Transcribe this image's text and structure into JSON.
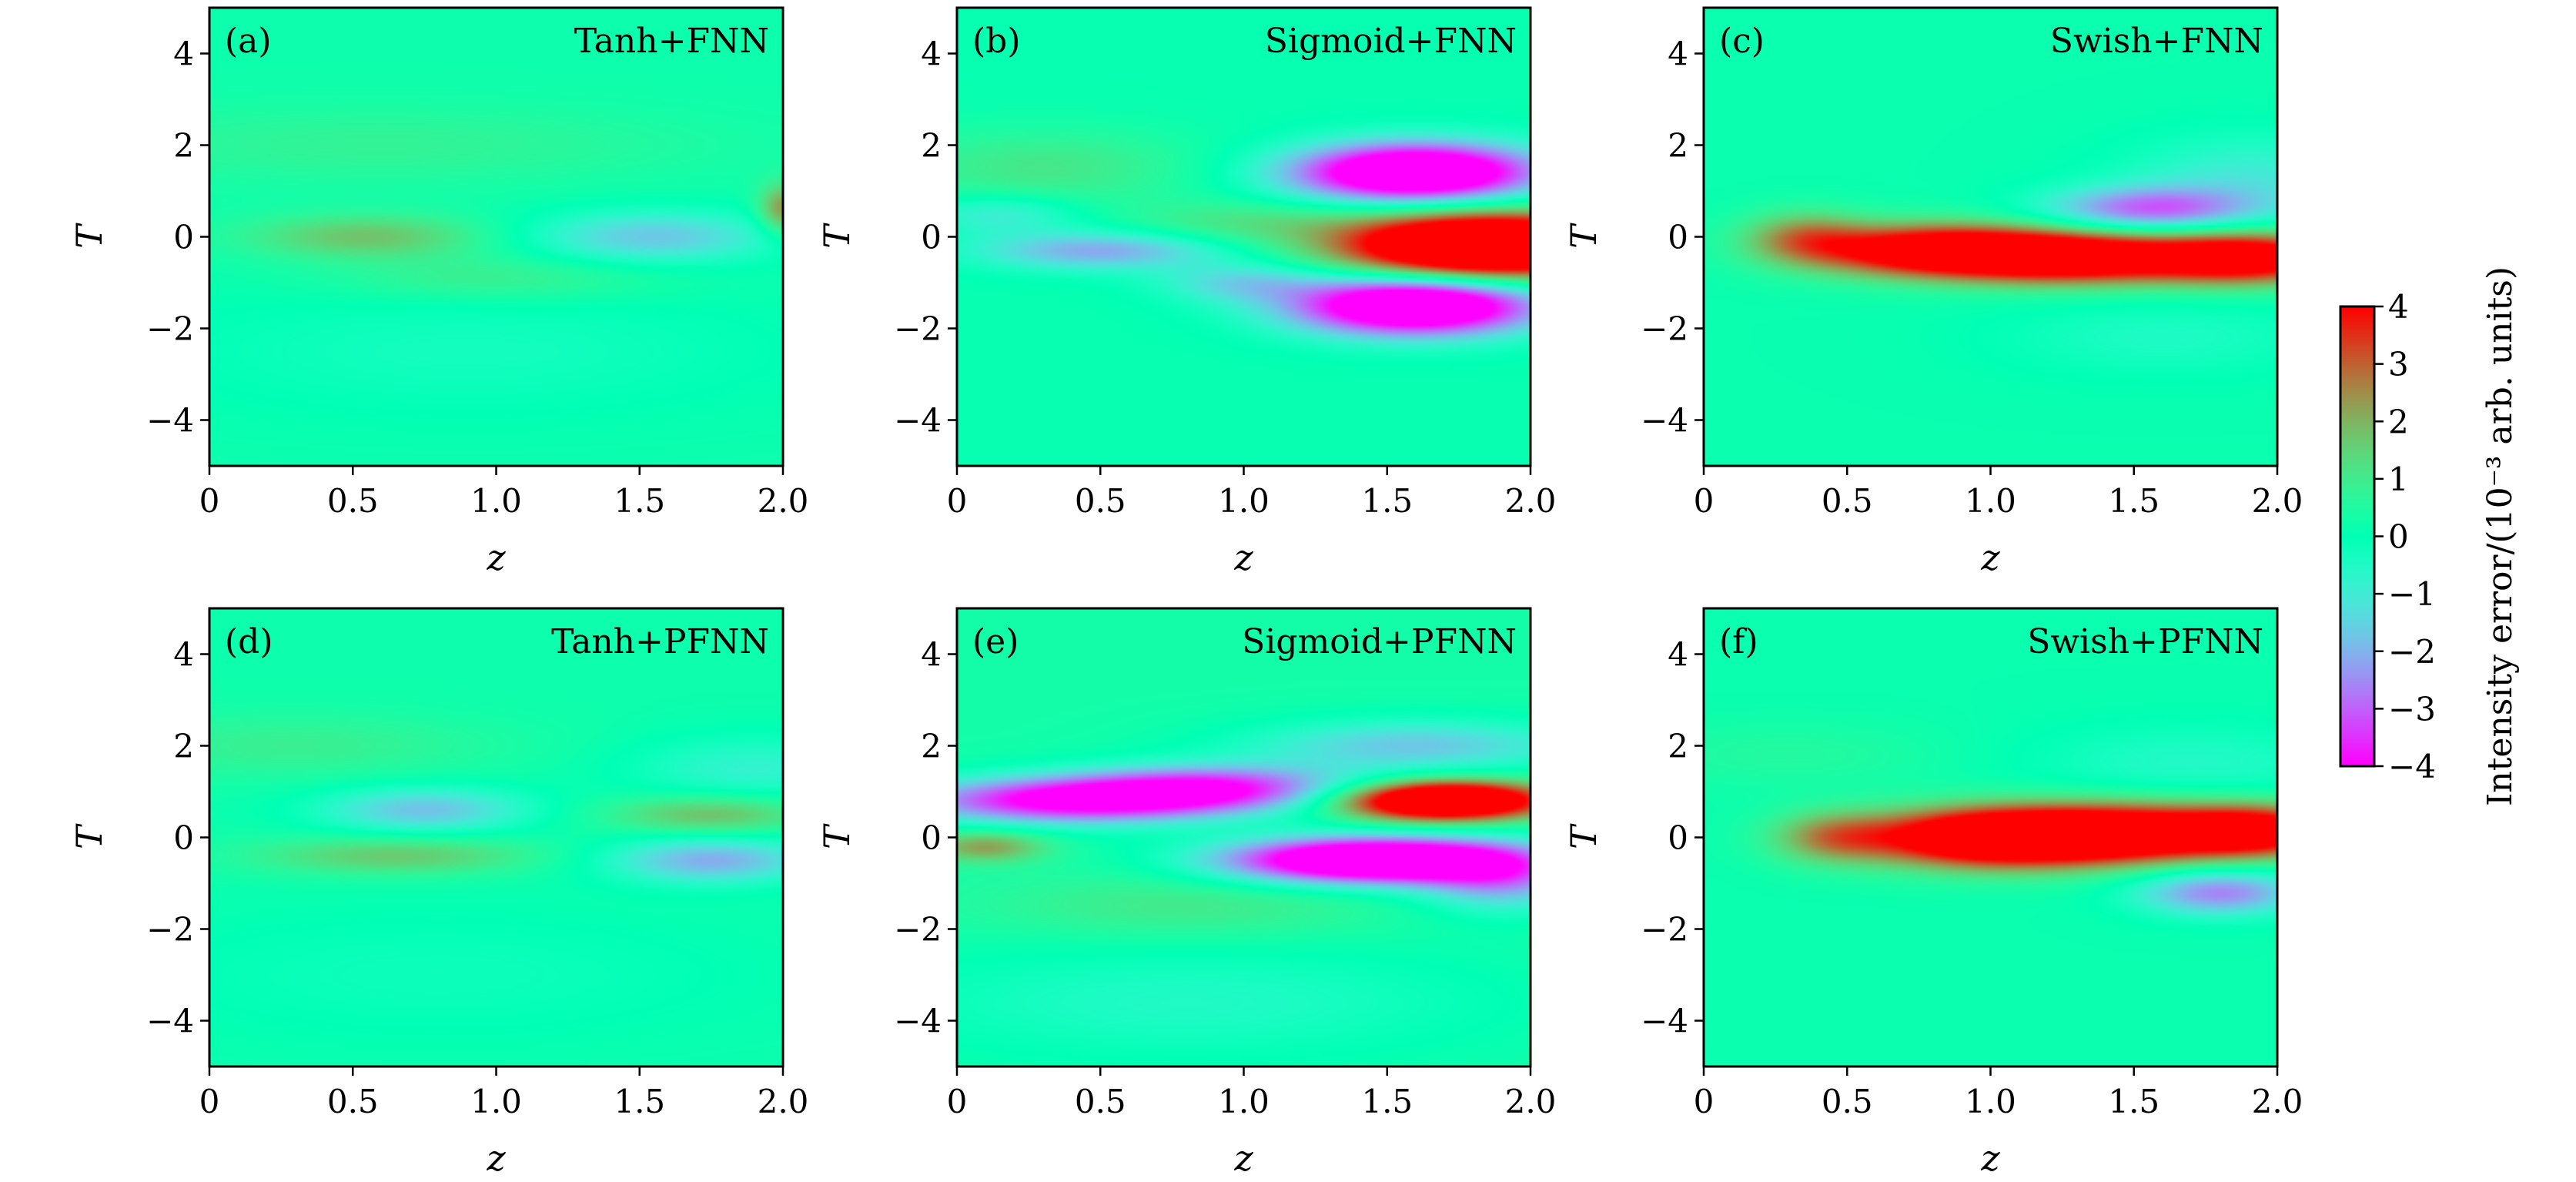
{
  "chart_data": {
    "type": "heatmap",
    "colormap": "rainbow",
    "colorbar": {
      "label": "Intensity error/(10⁻³ arb. units)",
      "vmin": -4,
      "vmax": 4,
      "ticks": [
        "4",
        "3",
        "2",
        "1",
        "0",
        "−1",
        "−2",
        "−3",
        "−4"
      ],
      "tick_values": [
        4,
        3,
        2,
        1,
        0,
        -1,
        -2,
        -3,
        -4
      ]
    },
    "panels": [
      {
        "label": "(a)",
        "title": "Tanh+FNN",
        "xlabel": "z",
        "ylabel": "T",
        "xlim": [
          0,
          2.0
        ],
        "ylim": [
          -5,
          5
        ],
        "xticks": [
          "0",
          "0.5",
          "1.0",
          "1.5",
          "2.0"
        ],
        "xtick_values": [
          0,
          0.5,
          1.0,
          1.5,
          2.0
        ],
        "yticks": [
          "4",
          "2",
          "0",
          "−2",
          "−4"
        ],
        "ytick_values": [
          4,
          2,
          0,
          -2,
          -4
        ],
        "background": 0.2,
        "features": [
          {
            "z": 0.55,
            "t": 0.0,
            "sz": 0.3,
            "st": 0.35,
            "amp": 1.6
          },
          {
            "z": 1.55,
            "t": 0.0,
            "sz": 0.3,
            "st": 0.4,
            "amp": -1.9
          },
          {
            "z": 2.0,
            "t": 0.6,
            "sz": 0.06,
            "st": 0.4,
            "amp": 2.3
          },
          {
            "z": 1.0,
            "t": -0.9,
            "sz": 0.4,
            "st": 0.35,
            "amp": 0.8
          },
          {
            "z": 0.9,
            "t": -2.5,
            "sz": 0.8,
            "st": 1.0,
            "amp": -0.5
          },
          {
            "z": 0.6,
            "t": 2.0,
            "sz": 0.8,
            "st": 0.6,
            "amp": 0.6
          }
        ]
      },
      {
        "label": "(b)",
        "title": "Sigmoid+FNN",
        "xlabel": "z",
        "ylabel": "T",
        "xlim": [
          0,
          2.0
        ],
        "ylim": [
          -5,
          5
        ],
        "xticks": [
          "0",
          "0.5",
          "1.0",
          "1.5",
          "2.0"
        ],
        "xtick_values": [
          0,
          0.5,
          1.0,
          1.5,
          2.0
        ],
        "yticks": [
          "4",
          "2",
          "0",
          "−2",
          "−4"
        ],
        "ytick_values": [
          4,
          2,
          0,
          -2,
          -4
        ],
        "background": 0.1,
        "features": [
          {
            "z": 1.6,
            "t": 1.4,
            "sz": 0.3,
            "st": 0.45,
            "amp": -6.5
          },
          {
            "z": 1.85,
            "t": -0.2,
            "sz": 0.35,
            "st": 0.5,
            "amp": 8.0
          },
          {
            "z": 1.6,
            "t": -1.5,
            "sz": 0.3,
            "st": 0.45,
            "amp": -6.5
          },
          {
            "z": 0.5,
            "t": -0.3,
            "sz": 0.3,
            "st": 0.3,
            "amp": -2.3
          },
          {
            "z": 0.15,
            "t": 0.5,
            "sz": 0.2,
            "st": 0.3,
            "amp": -1.2
          },
          {
            "z": 1.0,
            "t": 0.3,
            "sz": 0.3,
            "st": 0.35,
            "amp": 1.0
          },
          {
            "z": 0.3,
            "t": 1.5,
            "sz": 0.4,
            "st": 0.6,
            "amp": 1.0
          },
          {
            "z": 1.0,
            "t": -1.0,
            "sz": 0.2,
            "st": 0.3,
            "amp": -1.5
          }
        ]
      },
      {
        "label": "(c)",
        "title": "Swish+FNN",
        "xlabel": "z",
        "ylabel": "T",
        "xlim": [
          0,
          2.0
        ],
        "ylim": [
          -5,
          5
        ],
        "xticks": [
          "0",
          "0.5",
          "1.0",
          "1.5",
          "2.0"
        ],
        "xtick_values": [
          0,
          0.5,
          1.0,
          1.5,
          2.0
        ],
        "yticks": [
          "4",
          "2",
          "0",
          "−2",
          "−4"
        ],
        "ytick_values": [
          4,
          2,
          0,
          -2,
          -4
        ],
        "background": 0.15,
        "features": [
          {
            "z": 0.8,
            "t": -0.3,
            "sz": 0.3,
            "st": 0.4,
            "amp": 5.0
          },
          {
            "z": 1.3,
            "t": -0.45,
            "sz": 0.3,
            "st": 0.4,
            "amp": 5.0
          },
          {
            "z": 1.9,
            "t": -0.45,
            "sz": 0.25,
            "st": 0.4,
            "amp": 5.0
          },
          {
            "z": 0.35,
            "t": 0.0,
            "sz": 0.15,
            "st": 0.4,
            "amp": 2.0
          },
          {
            "z": 1.55,
            "t": 0.6,
            "sz": 0.25,
            "st": 0.35,
            "amp": -3.0
          },
          {
            "z": 1.9,
            "t": 1.2,
            "sz": 0.3,
            "st": 0.7,
            "amp": -1.2
          },
          {
            "z": 1.6,
            "t": -2.2,
            "sz": 0.4,
            "st": 0.6,
            "amp": -0.6
          }
        ]
      },
      {
        "label": "(d)",
        "title": "Tanh+PFNN",
        "xlabel": "z",
        "ylabel": "T",
        "xlim": [
          0,
          2.0
        ],
        "ylim": [
          -5,
          5
        ],
        "xticks": [
          "0",
          "0.5",
          "1.0",
          "1.5",
          "2.0"
        ],
        "xtick_values": [
          0,
          0.5,
          1.0,
          1.5,
          2.0
        ],
        "yticks": [
          "4",
          "2",
          "0",
          "−2",
          "−4"
        ],
        "ytick_values": [
          4,
          2,
          0,
          -2,
          -4
        ],
        "background": 0.2,
        "features": [
          {
            "z": 0.75,
            "t": 0.6,
            "sz": 0.25,
            "st": 0.35,
            "amp": -2.0
          },
          {
            "z": 0.65,
            "t": -0.4,
            "sz": 0.35,
            "st": 0.3,
            "amp": 1.5
          },
          {
            "z": 1.75,
            "t": 0.5,
            "sz": 0.25,
            "st": 0.3,
            "amp": 1.7
          },
          {
            "z": 1.75,
            "t": -0.5,
            "sz": 0.25,
            "st": 0.35,
            "amp": -2.3
          },
          {
            "z": 1.9,
            "t": 1.5,
            "sz": 0.3,
            "st": 0.5,
            "amp": -1.0
          },
          {
            "z": 0.3,
            "t": 2.0,
            "sz": 0.5,
            "st": 0.5,
            "amp": 0.7
          },
          {
            "z": 0.8,
            "t": -3.0,
            "sz": 0.8,
            "st": 1.0,
            "amp": -0.4
          }
        ]
      },
      {
        "label": "(e)",
        "title": "Sigmoid+PFNN",
        "xlabel": "z",
        "ylabel": "T",
        "xlim": [
          0,
          2.0
        ],
        "ylim": [
          -5,
          5
        ],
        "xticks": [
          "0",
          "0.5",
          "1.0",
          "1.5",
          "2.0"
        ],
        "xtick_values": [
          0,
          0.5,
          1.0,
          1.5,
          2.0
        ],
        "yticks": [
          "4",
          "2",
          "0",
          "−2",
          "−4"
        ],
        "ytick_values": [
          4,
          2,
          0,
          -2,
          -4
        ],
        "background": 0.3,
        "features": [
          {
            "z": 0.4,
            "t": 0.8,
            "sz": 0.4,
            "st": 0.35,
            "amp": -4.5
          },
          {
            "z": 0.9,
            "t": 1.1,
            "sz": 0.35,
            "st": 0.35,
            "amp": -3.5
          },
          {
            "z": 1.7,
            "t": 0.8,
            "sz": 0.25,
            "st": 0.3,
            "amp": 7.0
          },
          {
            "z": 1.45,
            "t": -0.5,
            "sz": 0.35,
            "st": 0.35,
            "amp": -7.0
          },
          {
            "z": 1.9,
            "t": -0.9,
            "sz": 0.2,
            "st": 0.5,
            "amp": -2.5
          },
          {
            "z": 0.1,
            "t": -0.2,
            "sz": 0.15,
            "st": 0.25,
            "amp": 2.0
          },
          {
            "z": 1.6,
            "t": 2.0,
            "sz": 0.4,
            "st": 0.4,
            "amp": -2.0
          },
          {
            "z": 0.8,
            "t": -1.5,
            "sz": 0.5,
            "st": 0.5,
            "amp": 0.8
          },
          {
            "z": 0.8,
            "t": -3.6,
            "sz": 0.8,
            "st": 0.9,
            "amp": -0.8
          }
        ]
      },
      {
        "label": "(f)",
        "title": "Swish+PFNN",
        "xlabel": "z",
        "ylabel": "T",
        "xlim": [
          0,
          2.0
        ],
        "ylim": [
          -5,
          5
        ],
        "xticks": [
          "0",
          "0.5",
          "1.0",
          "1.5",
          "2.0"
        ],
        "xtick_values": [
          0,
          0.5,
          1.0,
          1.5,
          2.0
        ],
        "yticks": [
          "4",
          "2",
          "0",
          "−2",
          "−4"
        ],
        "ytick_values": [
          4,
          2,
          0,
          -2,
          -4
        ],
        "background": 0.15,
        "features": [
          {
            "z": 1.0,
            "t": 0.0,
            "sz": 0.3,
            "st": 0.45,
            "amp": 6.0
          },
          {
            "z": 1.5,
            "t": 0.1,
            "sz": 0.3,
            "st": 0.45,
            "amp": 5.0
          },
          {
            "z": 1.95,
            "t": 0.15,
            "sz": 0.2,
            "st": 0.4,
            "amp": 4.0
          },
          {
            "z": 0.45,
            "t": 0.0,
            "sz": 0.15,
            "st": 0.4,
            "amp": 2.0
          },
          {
            "z": 1.8,
            "t": -1.2,
            "sz": 0.2,
            "st": 0.35,
            "amp": -2.8
          },
          {
            "z": 1.7,
            "t": 1.6,
            "sz": 0.4,
            "st": 0.6,
            "amp": -0.7
          },
          {
            "z": 0.3,
            "t": 1.8,
            "sz": 0.4,
            "st": 0.5,
            "amp": 0.4
          }
        ]
      }
    ]
  }
}
